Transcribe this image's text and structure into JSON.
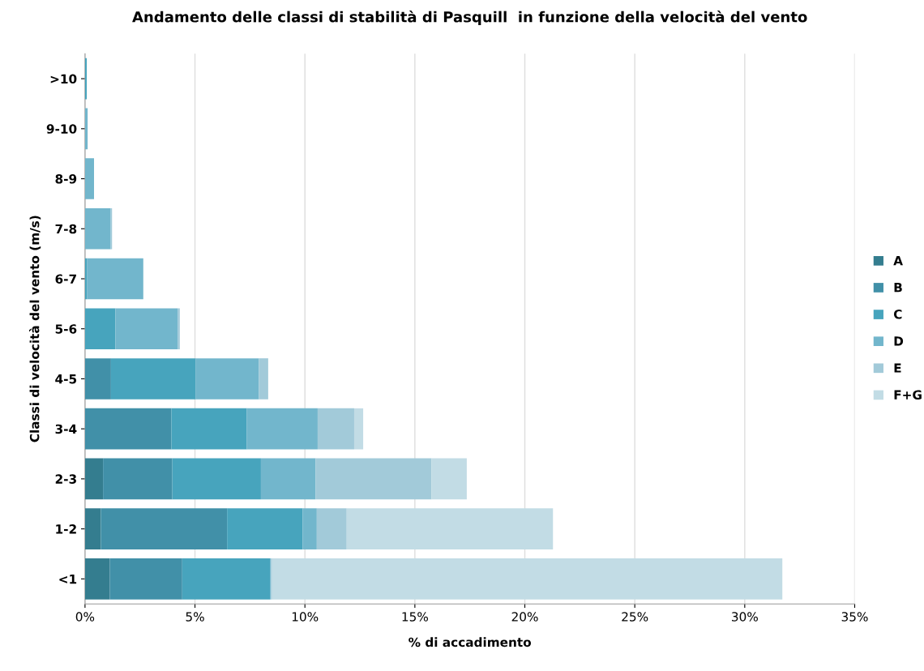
{
  "chart_data": {
    "type": "bar",
    "orientation": "horizontal",
    "stacked": true,
    "title": "Andamento delle classi di stabilità di Pasquill  in funzione della velocità del vento",
    "xlabel": "% di accadimento",
    "ylabel": "Classi di velocità del vento (m/s)",
    "categories": [
      ">10",
      "9-10",
      "8-9",
      "7-8",
      "6-7",
      "5-6",
      "4-5",
      "3-4",
      "2-3",
      "1-2",
      "<1"
    ],
    "series": [
      {
        "name": "A",
        "color": "#347d8f",
        "values": [
          null,
          null,
          null,
          null,
          null,
          null,
          null,
          null,
          0.82,
          0.72,
          1.13
        ]
      },
      {
        "name": "B",
        "color": "#4190a8",
        "values": [
          null,
          null,
          null,
          null,
          null,
          null,
          1.18,
          3.93,
          3.15,
          5.74,
          3.29
        ]
      },
      {
        "name": "C",
        "color": "#47a4bd",
        "values": [
          0.08,
          null,
          null,
          null,
          0.1,
          1.38,
          3.86,
          3.43,
          4.03,
          3.44,
          3.99
        ]
      },
      {
        "name": "D",
        "color": "#72b6cc",
        "values": [
          null,
          0.12,
          0.41,
          1.17,
          2.55,
          2.83,
          2.86,
          3.22,
          2.48,
          0.64,
          0.05
        ]
      },
      {
        "name": "E",
        "color": "#a2cad9",
        "values": [
          null,
          null,
          null,
          0.06,
          null,
          0.1,
          0.43,
          1.66,
          5.28,
          1.36,
          0.05
        ]
      },
      {
        "name": "F+G",
        "color": "#c2dce5",
        "values": [
          null,
          null,
          null,
          null,
          null,
          null,
          null,
          0.41,
          1.6,
          9.38,
          23.2
        ]
      }
    ],
    "xlim": [
      0,
      35
    ],
    "xticks": [
      {
        "value": 0,
        "label": "0%"
      },
      {
        "value": 5,
        "label": "5%"
      },
      {
        "value": 10,
        "label": "10%"
      },
      {
        "value": 15,
        "label": "15%"
      },
      {
        "value": 20,
        "label": "20%"
      },
      {
        "value": 25,
        "label": "25%"
      },
      {
        "value": 30,
        "label": "30%"
      },
      {
        "value": 35,
        "label": "35%"
      }
    ],
    "grid": "x",
    "legend": "right"
  }
}
